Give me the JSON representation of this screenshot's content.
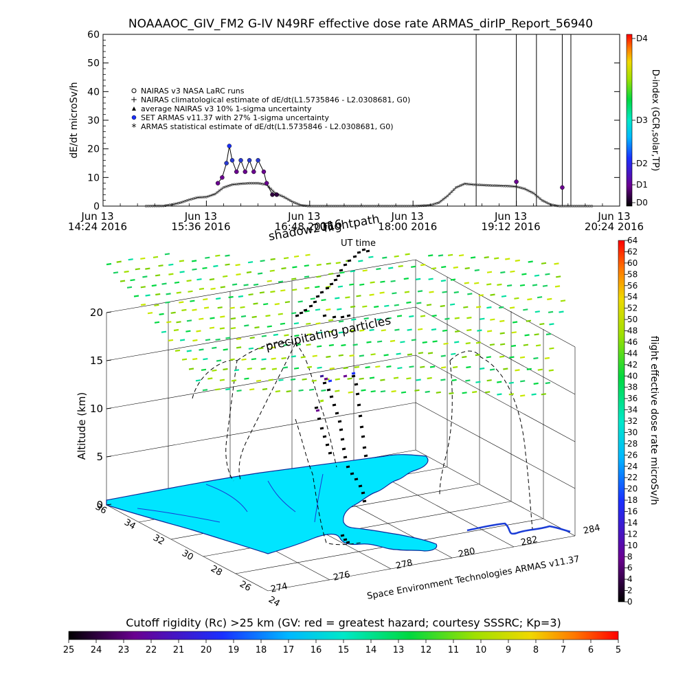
{
  "title": "NOAAAOC_GIV_FM2 G-IV    N49RF   effective dose rate ARMAS_dirIP_Report_56940",
  "chart_data": [
    {
      "type": "scatter",
      "name": "top",
      "ylabel": "dE/dt microSv/h",
      "ylim": [
        0,
        60
      ],
      "yticks": [
        "0",
        "10",
        "20",
        "30",
        "40",
        "50",
        "60"
      ],
      "xticks": [
        {
          "l1": "Jun 13",
          "l2": "14:24 2016"
        },
        {
          "l1": "Jun 13",
          "l2": "15:36 2016"
        },
        {
          "l1": "Jun 13",
          "l2": "16:48 2016"
        },
        {
          "l1": "Jun 13",
          "l2": "18:00 2016"
        },
        {
          "l1": "Jun 13",
          "l2": "19:12 2016"
        },
        {
          "l1": "Jun 13",
          "l2": "20:24 2016"
        }
      ],
      "xlim": [
        "14:24",
        "20:24"
      ],
      "legend": [
        {
          "symbol": "circle-open",
          "label": "NAIRAS v3 NASA LaRC runs"
        },
        {
          "symbol": "plus",
          "label": "NAIRAS climatological estimate of dE/dt(L1.5735846 - L2.0308681, G0)"
        },
        {
          "symbol": "triangle",
          "label": "average NAIRAS v3 10% 1-sigma uncertainty"
        },
        {
          "symbol": "circle-filled",
          "label": "SET ARMAS v11.37 with 27% 1-sigma uncertainty"
        },
        {
          "symbol": "asterisk",
          "label": "ARMAS statistical estimate of dE/dt(L1.5735846 - L2.0308681, G0)"
        }
      ],
      "right_axis": {
        "label": "D-index (GCR,solar,TP)",
        "ticks": [
          "D0",
          "D1",
          "D2",
          "D3",
          "D4"
        ]
      },
      "nairas_curve": [
        {
          "x": "14:54",
          "y": 0
        },
        {
          "x": "15:06",
          "y": 0.1
        },
        {
          "x": "15:12",
          "y": 0.5
        },
        {
          "x": "15:18",
          "y": 1.2
        },
        {
          "x": "15:24",
          "y": 2.2
        },
        {
          "x": "15:30",
          "y": 3.0
        },
        {
          "x": "15:36",
          "y": 3.2
        },
        {
          "x": "15:42",
          "y": 4.2
        },
        {
          "x": "15:48",
          "y": 6.5
        },
        {
          "x": "15:54",
          "y": 7.5
        },
        {
          "x": "16:00",
          "y": 7.8
        },
        {
          "x": "16:06",
          "y": 8.0
        },
        {
          "x": "16:12",
          "y": 8.0
        },
        {
          "x": "16:18",
          "y": 7.5
        },
        {
          "x": "16:24",
          "y": 4.5
        },
        {
          "x": "16:30",
          "y": 3.2
        },
        {
          "x": "16:36",
          "y": 1.5
        },
        {
          "x": "16:42",
          "y": 0.3
        },
        {
          "x": "16:48",
          "y": 0
        },
        {
          "x": "18:00",
          "y": 0
        },
        {
          "x": "18:12",
          "y": 0.3
        },
        {
          "x": "18:18",
          "y": 1.2
        },
        {
          "x": "18:24",
          "y": 3.5
        },
        {
          "x": "18:30",
          "y": 6.5
        },
        {
          "x": "18:36",
          "y": 7.8
        },
        {
          "x": "18:42",
          "y": 7.5
        },
        {
          "x": "18:54",
          "y": 7.2
        },
        {
          "x": "19:06",
          "y": 7.0
        },
        {
          "x": "19:12",
          "y": 6.8
        },
        {
          "x": "19:18",
          "y": 6.0
        },
        {
          "x": "19:24",
          "y": 4.5
        },
        {
          "x": "19:30",
          "y": 2.0
        },
        {
          "x": "19:36",
          "y": 0.5
        },
        {
          "x": "19:42",
          "y": 0
        },
        {
          "x": "20:06",
          "y": 0
        }
      ],
      "armas_points": [
        {
          "x": "15:44",
          "y": 8
        },
        {
          "x": "15:47",
          "y": 10
        },
        {
          "x": "15:50",
          "y": 15
        },
        {
          "x": "15:52",
          "y": 21
        },
        {
          "x": "15:54",
          "y": 16
        },
        {
          "x": "15:57",
          "y": 12
        },
        {
          "x": "16:00",
          "y": 16
        },
        {
          "x": "16:03",
          "y": 12
        },
        {
          "x": "16:06",
          "y": 16
        },
        {
          "x": "16:09",
          "y": 12
        },
        {
          "x": "16:12",
          "y": 16
        },
        {
          "x": "16:16",
          "y": 12
        },
        {
          "x": "16:18",
          "y": 8
        },
        {
          "x": "16:22",
          "y": 4
        },
        {
          "x": "16:25",
          "y": 4
        },
        {
          "x": "19:12",
          "y": 8.5
        },
        {
          "x": "19:44",
          "y": 6.5
        }
      ],
      "armas_spikes": [
        "18:44",
        "19:12",
        "19:26",
        "19:44",
        "19:50"
      ]
    },
    {
      "type": "scatter",
      "name": "3d",
      "annotations": [
        "shadow2016",
        "flightpath",
        "UT time",
        "precipitating particles"
      ],
      "zlabel": "Altitude (km)",
      "zlim": [
        0,
        20
      ],
      "zticks": [
        "0",
        "5",
        "10",
        "15",
        "20"
      ],
      "lat_ticks": [
        "36",
        "34",
        "32",
        "30",
        "28",
        "26",
        "24"
      ],
      "lon_ticks": [
        "274",
        "276",
        "278",
        "280",
        "282",
        "284"
      ],
      "credit": "Space Environment Technologies ARMAS v11.37",
      "right_colorbar": {
        "label": "flight effective dose rate microSv/h",
        "min": 0,
        "max": 64,
        "ticks": [
          "0",
          "2",
          "4",
          "6",
          "8",
          "10",
          "12",
          "14",
          "16",
          "18",
          "20",
          "22",
          "24",
          "26",
          "28",
          "30",
          "32",
          "34",
          "36",
          "38",
          "40",
          "42",
          "44",
          "46",
          "48",
          "50",
          "52",
          "54",
          "56",
          "58",
          "60",
          "62",
          "64"
        ]
      },
      "bottom_colorbar": {
        "label": "Cutoff rigidity (Rc) >25 km (GV: red = greatest hazard; courtesy SSSRC; Kp=3)",
        "ticks": [
          "25",
          "24",
          "23",
          "22",
          "21",
          "20",
          "19",
          "18",
          "17",
          "16",
          "15",
          "14",
          "13",
          "12",
          "11",
          "10",
          "9",
          "8",
          "7",
          "6",
          "5"
        ]
      }
    }
  ]
}
